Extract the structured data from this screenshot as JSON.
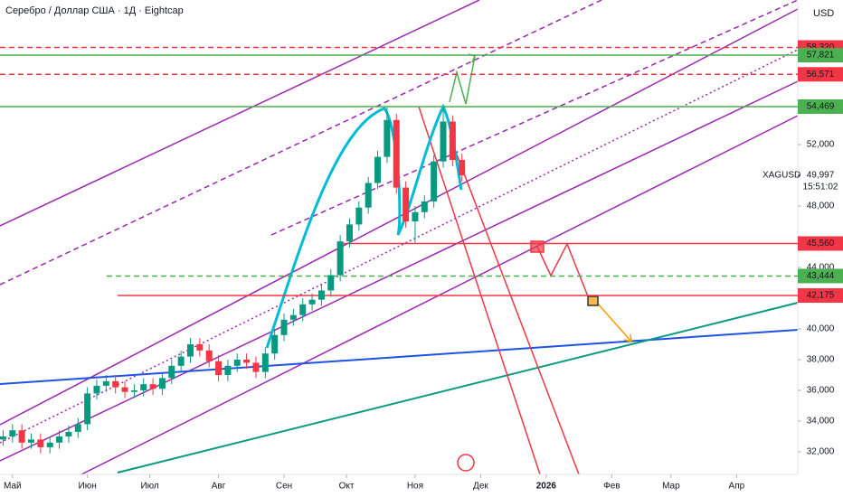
{
  "chart_data": {
    "type": "candlestick",
    "title": "Серебро / Доллар США · 1Д · Eightcap",
    "currency": "USD",
    "x": [
      -3,
      0,
      3,
      6,
      9,
      12,
      15,
      18,
      21,
      24,
      27,
      30,
      33,
      36,
      39,
      42,
      45,
      48,
      51,
      54,
      57,
      60,
      63,
      66,
      69,
      72,
      75,
      78,
      81,
      84,
      87,
      90,
      93,
      96,
      99,
      102,
      105,
      108,
      111,
      114,
      117,
      120,
      123,
      126,
      129,
      132,
      135,
      138,
      141,
      144
    ],
    "open": [
      32800,
      33000,
      33400,
      32600,
      32800,
      32300,
      32600,
      33000,
      33300,
      33800,
      35800,
      36300,
      36600,
      36200,
      35900,
      36000,
      36400,
      36100,
      36800,
      37600,
      38200,
      39000,
      38600,
      37900,
      37000,
      37600,
      38000,
      37800,
      37200,
      38400,
      39600,
      40600,
      40900,
      41600,
      41900,
      42500,
      43500,
      45700,
      46800,
      47900,
      49500,
      51200,
      53600,
      49200,
      47000,
      47600,
      48300,
      50900,
      53500,
      51000
    ],
    "high": [
      33400,
      33800,
      33800,
      33200,
      33200,
      33000,
      33400,
      33700,
      34200,
      36200,
      36700,
      37000,
      37000,
      36600,
      36400,
      36800,
      36800,
      37200,
      38000,
      38600,
      39400,
      39400,
      39000,
      38300,
      38000,
      38400,
      38400,
      38200,
      38800,
      40000,
      41000,
      41300,
      42000,
      42300,
      42900,
      43900,
      46100,
      47200,
      48300,
      49900,
      51600,
      54400,
      54000,
      49600,
      48000,
      48700,
      51300,
      54400,
      53900,
      51400
    ],
    "low": [
      32400,
      32600,
      32200,
      32200,
      31900,
      31900,
      32200,
      32600,
      32900,
      33400,
      35400,
      35900,
      35800,
      35500,
      35500,
      35600,
      35700,
      35700,
      36400,
      37200,
      37800,
      38200,
      37500,
      36600,
      36600,
      37200,
      37400,
      36800,
      36800,
      38000,
      39200,
      40200,
      40500,
      41200,
      41500,
      42100,
      43100,
      45300,
      46400,
      47500,
      49100,
      50800,
      48800,
      46600,
      45600,
      47200,
      47900,
      50500,
      50600,
      49600
    ],
    "close": [
      33000,
      33400,
      32600,
      32800,
      32300,
      32600,
      33000,
      33300,
      33800,
      35800,
      36300,
      36600,
      36200,
      35900,
      36000,
      36400,
      36100,
      36800,
      37600,
      38200,
      39000,
      38600,
      37900,
      37000,
      37600,
      38000,
      37800,
      37200,
      38400,
      39600,
      40600,
      40900,
      41600,
      41900,
      42500,
      43500,
      45700,
      46800,
      47900,
      49500,
      51200,
      53600,
      49200,
      47000,
      47600,
      48300,
      50900,
      53500,
      51000,
      49997
    ],
    "up_color": "#089981",
    "down_color": "#f23645",
    "xlim": [
      -4,
      251.6
    ],
    "ylim": [
      30530,
      61410
    ],
    "xticks": [
      {
        "value": 0,
        "label": "Май"
      },
      {
        "value": 24,
        "label": "Июн"
      },
      {
        "value": 44,
        "label": "Июл"
      },
      {
        "value": 66,
        "label": "Авг"
      },
      {
        "value": 87,
        "label": "Сен"
      },
      {
        "value": 107,
        "label": "Окт"
      },
      {
        "value": 129,
        "label": "Ноя"
      },
      {
        "value": 150,
        "label": "Дек"
      },
      {
        "value": 171,
        "label": "2026"
      },
      {
        "value": 192,
        "label": "Фев"
      },
      {
        "value": 211,
        "label": "Мар"
      },
      {
        "value": 232,
        "label": "Апр"
      }
    ],
    "yticks": [
      {
        "value": 32000,
        "label": "32,000"
      },
      {
        "value": 34000,
        "label": "34,000"
      },
      {
        "value": 36000,
        "label": "36,000"
      },
      {
        "value": 38000,
        "label": "38,000"
      },
      {
        "value": 40000,
        "label": "40,000"
      },
      {
        "value": 44000,
        "label": "44,000"
      },
      {
        "value": 48000,
        "label": "48,000"
      },
      {
        "value": 52000,
        "label": "52,000"
      }
    ],
    "levels": [
      {
        "value": 58320,
        "label": "58,320",
        "color": "#f23645",
        "dashed": true
      },
      {
        "value": 57821,
        "label": "57,821",
        "color": "#4caf50",
        "dashed": false
      },
      {
        "value": 56571,
        "label": "56,571",
        "color": "#f23645",
        "dashed": true
      },
      {
        "value": 54469,
        "label": "54,469",
        "color": "#4caf50",
        "dashed": false
      },
      {
        "value": 45560,
        "label": "45,560",
        "color": "#f23645",
        "dashed": false
      },
      {
        "value": 43444,
        "label": "43,444",
        "color": "#4caf50",
        "dashed": true
      },
      {
        "value": 42175,
        "label": "42,175",
        "color": "#f23645",
        "dashed": false
      }
    ],
    "last_price": {
      "symbol": "XAGUSD",
      "value": 49997,
      "label": "49,997",
      "time": "15:51:02"
    }
  }
}
